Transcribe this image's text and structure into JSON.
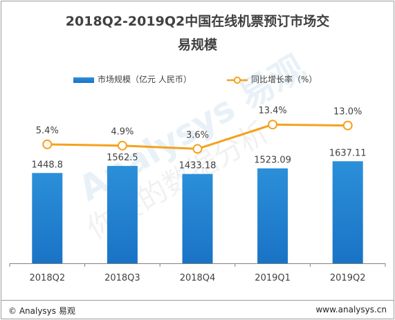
{
  "title": "2018Q2-2019Q2中国在线机票预订市场交易规模",
  "title_line1": "2018Q2-2019Q2中国在线机票预订市场交",
  "title_line2": "易规模",
  "legend": {
    "bar_label": "市场规模（亿元  人民币）",
    "line_label": "同比增长率（%）"
  },
  "footer": {
    "copyright": "© Analysys 易观",
    "website": "www.analysys.cn"
  },
  "watermark": {
    "text_latin": "Analysys 易观",
    "text_cn": "你要的数据分析"
  },
  "colors": {
    "bar_top": "#2b8fd9",
    "bar_bottom": "#1a73c6",
    "line": "#f5a11c",
    "marker_fill": "#ffffff",
    "text": "#404040",
    "axis": "#808080"
  },
  "chart_data": {
    "type": "bar",
    "title": "2018Q2-2019Q2中国在线机票预订市场交易规模",
    "categories": [
      "2018Q2",
      "2018Q3",
      "2018Q4",
      "2019Q1",
      "2019Q2"
    ],
    "series": [
      {
        "name": "市场规模（亿元  人民币）",
        "type": "bar",
        "values": [
          1448.8,
          1562.5,
          1433.18,
          1523.09,
          1637.11
        ],
        "labels": [
          "1448.8",
          "1562.5",
          "1433.18",
          "1523.09",
          "1637.11"
        ]
      },
      {
        "name": "同比增长率（%）",
        "type": "line",
        "values": [
          5.4,
          4.9,
          3.6,
          13.4,
          13.0
        ],
        "labels": [
          "5.4%",
          "4.9%",
          "3.6%",
          "13.4%",
          "13.0%"
        ]
      }
    ],
    "legend": "top",
    "grid": false
  }
}
